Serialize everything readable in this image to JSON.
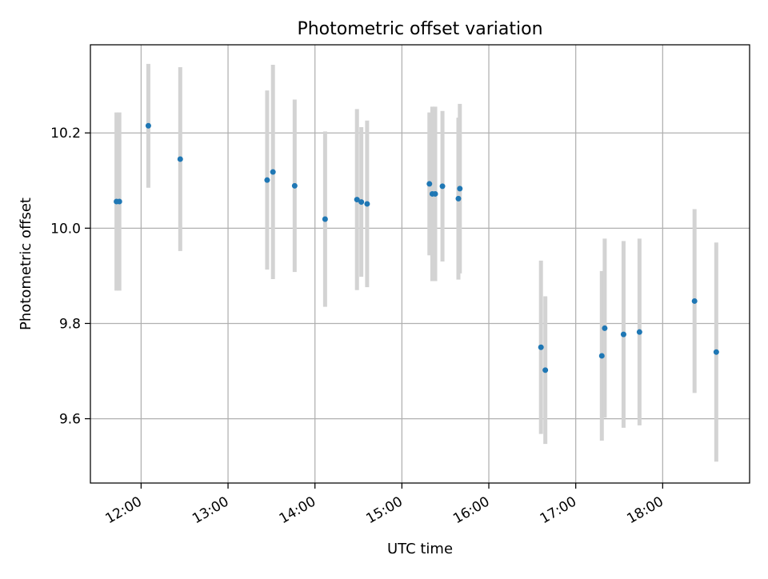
{
  "chart_data": {
    "type": "scatter",
    "title": "Photometric offset variation",
    "xlabel": "UTC time",
    "ylabel": "Photometric offset",
    "x_axis": "time",
    "xlim": [
      "11:25",
      "19:00"
    ],
    "ylim": [
      9.465,
      10.385
    ],
    "x_ticks": [
      "12:00",
      "13:00",
      "14:00",
      "15:00",
      "16:00",
      "17:00",
      "18:00"
    ],
    "y_ticks": [
      9.6,
      9.8,
      10.0,
      10.2
    ],
    "y_tick_labels": [
      "9.6",
      "9.8",
      "10.0",
      "10.2"
    ],
    "grid": true,
    "legend": "none",
    "colors": {
      "point": "#1f77b4",
      "errorbar": "#d3d3d3",
      "grid": "#b0b0b0",
      "axis": "#000000"
    },
    "series": [
      {
        "points": [
          {
            "x": "11:43",
            "y": 10.056,
            "yerr": 0.187
          },
          {
            "x": "11:45",
            "y": 10.056,
            "yerr": 0.187
          },
          {
            "x": "12:05",
            "y": 10.215,
            "yerr": 0.13
          },
          {
            "x": "12:27",
            "y": 10.145,
            "yerr": 0.193
          },
          {
            "x": "13:27",
            "y": 10.101,
            "yerr": 0.188
          },
          {
            "x": "13:31",
            "y": 10.118,
            "yerr": 0.225
          },
          {
            "x": "13:46",
            "y": 10.089,
            "yerr": 0.181
          },
          {
            "x": "14:07",
            "y": 10.019,
            "yerr": 0.184
          },
          {
            "x": "14:29",
            "y": 10.06,
            "yerr": 0.19
          },
          {
            "x": "14:32",
            "y": 10.055,
            "yerr": 0.157
          },
          {
            "x": "14:36",
            "y": 10.051,
            "yerr": 0.175
          },
          {
            "x": "15:19",
            "y": 10.093,
            "yerr": 0.15
          },
          {
            "x": "15:21",
            "y": 10.072,
            "yerr": 0.183
          },
          {
            "x": "15:23",
            "y": 10.072,
            "yerr": 0.183
          },
          {
            "x": "15:28",
            "y": 10.088,
            "yerr": 0.158
          },
          {
            "x": "15:39",
            "y": 10.062,
            "yerr": 0.17
          },
          {
            "x": "15:40",
            "y": 10.083,
            "yerr": 0.178
          },
          {
            "x": "16:36",
            "y": 9.75,
            "yerr": 0.182
          },
          {
            "x": "16:39",
            "y": 9.702,
            "yerr": 0.155
          },
          {
            "x": "17:18",
            "y": 9.732,
            "yerr": 0.178
          },
          {
            "x": "17:20",
            "y": 9.79,
            "yerr": 0.188
          },
          {
            "x": "17:33",
            "y": 9.777,
            "yerr": 0.196
          },
          {
            "x": "17:44",
            "y": 9.782,
            "yerr": 0.196
          },
          {
            "x": "18:22",
            "y": 9.847,
            "yerr": 0.193
          },
          {
            "x": "18:37",
            "y": 9.74,
            "yerr": 0.23
          }
        ]
      }
    ]
  }
}
